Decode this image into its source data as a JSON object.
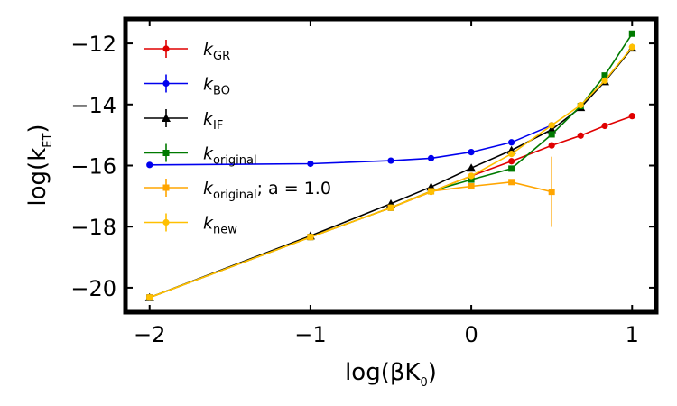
{
  "chart_data": {
    "type": "line",
    "title": "",
    "xlabel": "log(βK",
    "xlabel_sub": "0",
    "xlabel_close": ")",
    "ylabel": "log(k",
    "ylabel_sub": "ET",
    "ylabel_close": ")",
    "xlim": [
      -2.15,
      1.15
    ],
    "ylim": [
      -20.8,
      -11.2
    ],
    "xticks": [
      -2,
      -1,
      0,
      1
    ],
    "yticks": [
      -20,
      -18,
      -16,
      -14,
      -12
    ],
    "xtick_labels": [
      "−2",
      "−1",
      "0",
      "1"
    ],
    "ytick_labels": [
      "−20",
      "−18",
      "−16",
      "−14",
      "−12"
    ],
    "legend_position": "upper-left",
    "series": [
      {
        "name": "k_GR",
        "legend_main": "k",
        "legend_sub": "GR",
        "legend_tail": "",
        "color": "#e00000",
        "marker": "circle",
        "x": [
          -2,
          -1,
          -0.5,
          -0.25,
          0,
          0.25,
          0.5,
          0.68,
          0.83,
          1.0
        ],
        "y": [
          -20.32,
          -18.34,
          -17.38,
          -16.86,
          -16.34,
          -15.86,
          -15.34,
          -15.02,
          -14.7,
          -14.38
        ]
      },
      {
        "name": "k_BO",
        "legend_main": "k",
        "legend_sub": "BO",
        "legend_tail": "",
        "color": "#0000ee",
        "marker": "circle",
        "x": [
          -2,
          -1,
          -0.5,
          -0.25,
          0,
          0.25,
          0.5
        ],
        "y": [
          -15.98,
          -15.94,
          -15.84,
          -15.76,
          -15.56,
          -15.24,
          -14.68
        ]
      },
      {
        "name": "k_IF",
        "legend_main": "k",
        "legend_sub": "IF",
        "legend_tail": "",
        "color": "#000000",
        "marker": "triangle",
        "x": [
          -2,
          -1,
          -0.5,
          -0.25,
          0,
          0.25,
          0.5,
          0.68,
          0.83,
          1.0
        ],
        "y": [
          -20.32,
          -18.3,
          -17.25,
          -16.7,
          -16.08,
          -15.5,
          -14.82,
          -14.1,
          -13.25,
          -12.15
        ]
      },
      {
        "name": "k_original",
        "legend_main": "k",
        "legend_sub": "original",
        "legend_tail": "",
        "color": "#007a00",
        "marker": "square",
        "x": [
          -2,
          -1,
          -0.5,
          -0.25,
          0,
          0.25,
          0.5,
          0.68,
          0.83,
          1.0
        ],
        "y": [
          -20.32,
          -18.34,
          -17.38,
          -16.84,
          -16.46,
          -16.1,
          -14.98,
          -14.05,
          -13.05,
          -11.68
        ]
      },
      {
        "name": "k_original; a = 1.0",
        "legend_main": "k",
        "legend_sub": "original",
        "legend_tail": "; a = 1.0",
        "color": "#ffa500",
        "marker": "square",
        "x": [
          -2,
          -1,
          -0.5,
          -0.25,
          0,
          0.25,
          0.5
        ],
        "y": [
          -20.32,
          -18.34,
          -17.38,
          -16.84,
          -16.68,
          -16.54,
          -16.86
        ],
        "yerr": [
          0,
          0,
          0,
          0,
          0,
          0,
          1.15
        ]
      },
      {
        "name": "k_new",
        "legend_main": "k",
        "legend_sub": "new",
        "legend_tail": "",
        "color": "#ffc000",
        "marker": "circle",
        "x": [
          -2,
          -1,
          -0.5,
          -0.25,
          0,
          0.25,
          0.5,
          0.68,
          0.83,
          1.0
        ],
        "y": [
          -20.32,
          -18.34,
          -17.38,
          -16.86,
          -16.34,
          -15.62,
          -14.68,
          -14.02,
          -13.22,
          -12.12
        ]
      }
    ]
  }
}
